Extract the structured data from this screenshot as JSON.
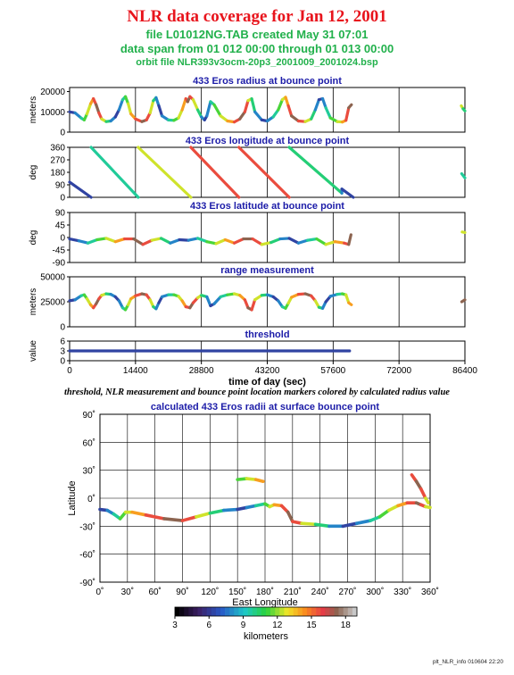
{
  "header": {
    "title": "NLR data coverage for Jan 12, 2001",
    "line1": "file L01012NG.TAB created May 31 07:01",
    "line2": "data span from 01 012 00:00 through 01 013 00:00",
    "line3": "orbit file NLR393v3ocm-20p3_2001009_2001024.bsp"
  },
  "caption": "threshold, NLR measurement and bounce point location markers colored by calculated radius value",
  "footer": "plt_NLR_info 010604 22:20",
  "colors": {
    "title": "#e8141c",
    "subtitle": "#22b14c",
    "panel_title": "#1c1ca8"
  },
  "chart_data": [
    {
      "type": "scatter",
      "title": "433 Eros radius at bounce point",
      "ylabel": "meters",
      "xlim": [
        0,
        86400
      ],
      "ylim": [
        0,
        22000
      ],
      "yticks": [
        "0",
        "10000",
        "20000"
      ],
      "ytick_values": [
        0,
        10000,
        20000
      ],
      "grid": true,
      "series": [
        {
          "x": [
            0,
            1200,
            2500,
            3200,
            3800,
            4600,
            5200,
            5800,
            6400,
            7000,
            8000,
            9000,
            10000,
            10800,
            11600,
            12200,
            12800,
            13400,
            14400,
            15800,
            16800,
            17600,
            18300,
            18900,
            19500,
            20200,
            21600,
            22800,
            23800,
            24600,
            25400,
            25800,
            26300,
            27000,
            28000,
            28800,
            29500,
            30000,
            30800,
            31600,
            33000,
            34500,
            36000,
            37200,
            38300,
            39000,
            39800,
            40500,
            42000,
            43200,
            44500,
            45600,
            46500,
            47200,
            47800,
            48500,
            50000,
            51500,
            52800,
            53700,
            54500,
            55300,
            56000,
            57000,
            58500,
            59600,
            60400,
            61000,
            61600,
            85600,
            86000,
            86400
          ],
          "y": [
            10000,
            9500,
            7000,
            6000,
            9000,
            14000,
            16500,
            13500,
            9500,
            6500,
            5200,
            5500,
            7500,
            11000,
            16000,
            17500,
            14000,
            9000,
            6500,
            5200,
            6000,
            9500,
            15500,
            17000,
            13000,
            8000,
            6000,
            5800,
            7000,
            11000,
            16500,
            15000,
            17500,
            16000,
            11000,
            7500,
            6000,
            8000,
            15000,
            13500,
            8000,
            5500,
            5000,
            6500,
            10000,
            15500,
            16500,
            10000,
            6000,
            5500,
            7500,
            11000,
            16000,
            17200,
            13000,
            8000,
            5500,
            5200,
            6500,
            11000,
            16000,
            16500,
            12000,
            7000,
            5200,
            5000,
            5800,
            12000,
            13500,
            13000,
            11500,
            10500
          ]
        }
      ]
    },
    {
      "type": "scatter",
      "title": "433 Eros longitude at bounce point",
      "ylabel": "deg",
      "xlim": [
        0,
        86400
      ],
      "ylim": [
        0,
        360
      ],
      "yticks": [
        "0",
        "90",
        "180",
        "270",
        "360"
      ],
      "ytick_values": [
        0,
        90,
        180,
        270,
        360
      ],
      "grid": true,
      "series": [
        {
          "x": [
            0,
            4700,
            4700,
            15000,
            15000,
            26500,
            26500,
            37000,
            37000,
            48000,
            48000,
            59500,
            59500,
            62000,
            85700,
            86400
          ],
          "y": [
            110,
            0,
            360,
            0,
            360,
            0,
            360,
            0,
            360,
            0,
            360,
            30,
            60,
            0,
            170,
            140
          ]
        }
      ]
    },
    {
      "type": "scatter",
      "title": "433 Eros latitude at bounce point",
      "ylabel": "deg",
      "xlim": [
        0,
        86400
      ],
      "ylim": [
        -90,
        90
      ],
      "yticks": [
        "-90",
        "-45",
        "0",
        "45",
        "90"
      ],
      "ytick_values": [
        -90,
        -45,
        0,
        45,
        90
      ],
      "grid": true,
      "series": [
        {
          "x": [
            0,
            2000,
            4000,
            6000,
            8000,
            10000,
            12000,
            14000,
            16000,
            18000,
            20000,
            22000,
            24000,
            26000,
            28000,
            30000,
            32000,
            34000,
            36000,
            38000,
            40000,
            42000,
            44000,
            46000,
            48000,
            50000,
            52000,
            54000,
            56000,
            58000,
            60000,
            61000,
            61500,
            85800,
            86400
          ],
          "y": [
            -5,
            -12,
            -20,
            -8,
            -3,
            -15,
            -5,
            -5,
            -25,
            -10,
            -3,
            -20,
            -8,
            -10,
            -3,
            -15,
            -22,
            -8,
            -20,
            -5,
            -5,
            -25,
            -18,
            -5,
            -3,
            -20,
            -10,
            -5,
            -25,
            -15,
            -20,
            -25,
            10,
            20,
            18
          ]
        }
      ]
    },
    {
      "type": "scatter",
      "title": "range measurement",
      "ylabel": "meters",
      "xlim": [
        0,
        86400
      ],
      "ylim": [
        0,
        50000
      ],
      "yticks": [
        "0",
        "25000",
        "50000"
      ],
      "ytick_values": [
        0,
        25000,
        50000
      ],
      "grid": true,
      "series": [
        {
          "x": [
            0,
            1200,
            2500,
            3200,
            3800,
            4600,
            5200,
            5800,
            6400,
            7000,
            8000,
            9000,
            10000,
            10800,
            11600,
            12200,
            12800,
            13400,
            14400,
            15800,
            16800,
            17600,
            18300,
            18900,
            19500,
            20200,
            21600,
            22800,
            23800,
            24600,
            25400,
            26300,
            27000,
            28000,
            28800,
            30000,
            30800,
            31600,
            33000,
            34500,
            36000,
            37200,
            38300,
            39000,
            39800,
            40500,
            42000,
            43200,
            44500,
            45600,
            46500,
            47200,
            47800,
            48500,
            50000,
            51500,
            52800,
            53700,
            54500,
            55300,
            56000,
            57000,
            58500,
            59600,
            60400,
            61000,
            61600,
            85700,
            86400
          ],
          "y": [
            26000,
            27000,
            31000,
            32000,
            28000,
            22000,
            19000,
            23000,
            28000,
            31500,
            33000,
            32500,
            30000,
            26000,
            19000,
            17000,
            22000,
            28000,
            31000,
            33000,
            32000,
            27000,
            20000,
            18000,
            24000,
            30000,
            32000,
            32000,
            30500,
            26000,
            20000,
            19000,
            24000,
            29000,
            31500,
            30000,
            21000,
            23000,
            30000,
            32000,
            33000,
            31500,
            27000,
            19000,
            17000,
            27000,
            31500,
            32000,
            30000,
            26000,
            20000,
            18500,
            23500,
            29500,
            32500,
            33000,
            31000,
            26000,
            19500,
            18500,
            25000,
            30500,
            32500,
            33000,
            32000,
            24000,
            22000,
            25000,
            27000
          ]
        }
      ]
    },
    {
      "type": "scatter",
      "title": "threshold",
      "ylabel": "value",
      "xlabel": "time of day (sec)",
      "xlim": [
        0,
        86400
      ],
      "ylim": [
        0,
        6
      ],
      "yticks": [
        "0",
        "3",
        "6"
      ],
      "ytick_values": [
        0,
        3,
        6
      ],
      "xticks": [
        "0",
        "14400",
        "28800",
        "43200",
        "57600",
        "72000",
        "86400"
      ],
      "xtick_values": [
        0,
        14400,
        28800,
        43200,
        57600,
        72000,
        86400
      ],
      "grid": true,
      "series": [
        {
          "x": [
            0,
            61200
          ],
          "y": [
            3,
            3
          ]
        }
      ]
    },
    {
      "type": "scatter",
      "title": "calculated 433 Eros radii at surface bounce point",
      "xlabel": "East Longitude",
      "ylabel": "Latitude",
      "xlim": [
        0,
        360
      ],
      "ylim": [
        -90,
        90
      ],
      "xticks": [
        "0˚",
        "30˚",
        "60˚",
        "90˚",
        "120˚",
        "150˚",
        "180˚",
        "210˚",
        "240˚",
        "270˚",
        "300˚",
        "330˚",
        "360˚"
      ],
      "xtick_values": [
        0,
        30,
        60,
        90,
        120,
        150,
        180,
        210,
        240,
        270,
        300,
        330,
        360
      ],
      "yticks": [
        "-90˚",
        "-60˚",
        "-30˚",
        "0˚",
        "30˚",
        "60˚",
        "90˚"
      ],
      "ytick_values": [
        -90,
        -60,
        -30,
        0,
        30,
        60,
        90
      ],
      "grid": true,
      "series": [
        {
          "x": [
            0,
            8,
            15,
            22,
            28,
            35,
            50,
            70,
            90,
            105,
            120,
            135,
            150,
            160,
            170,
            180,
            185,
            190,
            198,
            205,
            210,
            220,
            235,
            250,
            265,
            280,
            295,
            305,
            315,
            325,
            335,
            345,
            350,
            355,
            360
          ],
          "y": [
            -12,
            -13,
            -17,
            -22,
            -15,
            -15,
            -18,
            -22,
            -24,
            -20,
            -16,
            -13,
            -12,
            -10,
            -8,
            -6,
            -9,
            -7,
            -8,
            -15,
            -25,
            -27,
            -28,
            -30,
            -30,
            -27,
            -24,
            -20,
            -13,
            -8,
            -5,
            -5,
            -7,
            -9,
            -10
          ]
        },
        {
          "x": [
            150,
            160,
            170,
            178
          ],
          "y": [
            20,
            21,
            20,
            18
          ]
        },
        {
          "x": [
            340,
            345,
            350,
            355,
            358
          ],
          "y": [
            25,
            18,
            10,
            0,
            -5
          ]
        }
      ],
      "colorbar": {
        "label": "kilometers",
        "range": [
          3,
          19
        ],
        "ticks": [
          "3",
          "6",
          "9",
          "12",
          "15",
          "18"
        ],
        "tick_values": [
          3,
          6,
          9,
          12,
          15,
          18
        ]
      }
    }
  ]
}
